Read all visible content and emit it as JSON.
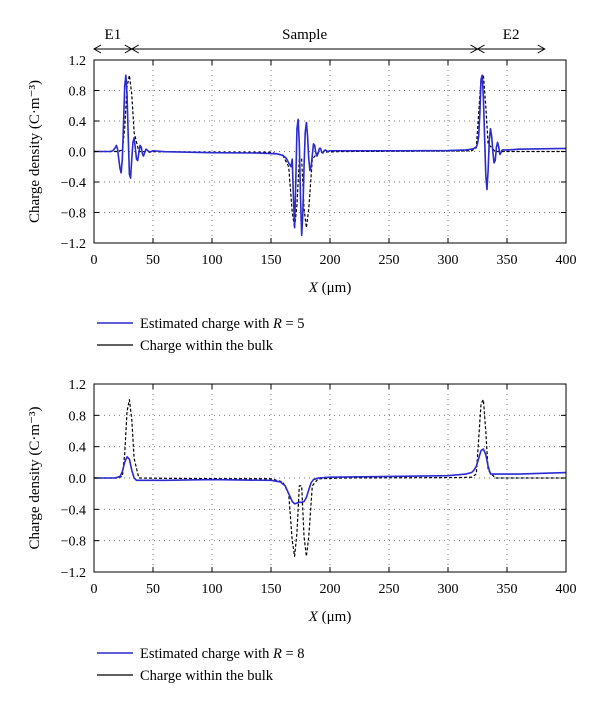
{
  "chart_data": [
    {
      "type": "line",
      "xlabel_var": "X",
      "xlabel_unit": "(μm)",
      "ylabel": "Charge density (C·m⁻³)",
      "xlim": [
        0,
        400
      ],
      "ylim": [
        -1.2,
        1.2
      ],
      "xticks": [
        0,
        50,
        100,
        150,
        200,
        250,
        300,
        350,
        400
      ],
      "yticks": [
        -1.2,
        -0.8,
        -0.4,
        0.0,
        0.4,
        0.8,
        1.2
      ],
      "grid": "dotted",
      "regions": [
        {
          "label": "E1",
          "from": 0,
          "to": 32
        },
        {
          "label": "Sample",
          "from": 32,
          "to": 325
        },
        {
          "label": "E2",
          "from": 325,
          "to": 382
        }
      ],
      "legend": [
        {
          "text": "Estimated charge with ",
          "var": "R",
          "suffix": " = 5",
          "color": "#2a2ad0",
          "dash": "solid"
        },
        {
          "text": "Charge within the bulk",
          "color": "#000000",
          "dash": "solid"
        }
      ],
      "series": [
        {
          "role": "bulk",
          "color": "#000000",
          "dash": "3,2",
          "x": [
            0,
            20,
            24,
            26,
            28,
            30,
            32,
            34,
            38,
            60,
            120,
            150,
            160,
            165,
            168,
            170,
            172,
            174,
            176,
            178,
            180,
            182,
            185,
            190,
            210,
            260,
            310,
            320,
            324,
            326,
            328,
            330,
            332,
            334,
            340,
            400
          ],
          "y": [
            0,
            0,
            0.02,
            0.3,
            0.85,
            1.0,
            0.75,
            0.25,
            0,
            -0.004,
            -0.01,
            -0.01,
            -0.05,
            -0.2,
            -0.8,
            -1.0,
            -0.7,
            -0.1,
            -0.1,
            -0.75,
            -1.0,
            -0.75,
            -0.1,
            -0.01,
            0.0,
            0.003,
            0.006,
            0.01,
            0.05,
            0.5,
            0.95,
            1.0,
            0.6,
            0.1,
            0.0,
            0.0
          ]
        },
        {
          "role": "estimated",
          "color": "#2a2ad0",
          "dash": "",
          "x": [
            0,
            14,
            16,
            18,
            19,
            20,
            21,
            22,
            23,
            24,
            25,
            26,
            27,
            28,
            29,
            30,
            31,
            32,
            33,
            34,
            35,
            36,
            37,
            38,
            39,
            40,
            41,
            42,
            43,
            44,
            45,
            47,
            50,
            60,
            100,
            140,
            155,
            160,
            163,
            165,
            167,
            168,
            169,
            170,
            171,
            172,
            173,
            174,
            175,
            176,
            177,
            178,
            179,
            180,
            181,
            182,
            183,
            184,
            185,
            186,
            187,
            188,
            189,
            190,
            191,
            192,
            193,
            194,
            195,
            196,
            198,
            200,
            210,
            260,
            300,
            315,
            320,
            322,
            324,
            325,
            326,
            327,
            328,
            329,
            330,
            331,
            332,
            333,
            334,
            335,
            336,
            337,
            338,
            339,
            340,
            341,
            342,
            343,
            344,
            346,
            350,
            360,
            400
          ],
          "y": [
            0,
            0,
            0.01,
            0.05,
            0.08,
            0.03,
            -0.1,
            -0.22,
            -0.28,
            -0.1,
            0.35,
            0.85,
            1.0,
            0.75,
            0.2,
            -0.3,
            -0.35,
            -0.1,
            0.12,
            0.18,
            0.05,
            -0.1,
            -0.12,
            -0.02,
            0.08,
            0.06,
            -0.03,
            -0.06,
            -0.01,
            0.03,
            0.02,
            -0.01,
            0.01,
            -0.003,
            -0.015,
            -0.02,
            -0.03,
            -0.05,
            -0.09,
            -0.15,
            -0.2,
            -0.1,
            -0.6,
            -1.0,
            -0.4,
            0.3,
            0.42,
            0.1,
            -0.6,
            -1.1,
            -0.8,
            -0.2,
            0.25,
            0.38,
            0.2,
            -0.1,
            -0.25,
            -0.2,
            -0.05,
            0.1,
            0.08,
            -0.02,
            -0.06,
            -0.02,
            0.04,
            0.04,
            -0.01,
            -0.02,
            0.01,
            0.02,
            0.0,
            0.01,
            0.01,
            0.01,
            0.012,
            0.02,
            0.03,
            0.04,
            0.06,
            0.1,
            0.2,
            0.5,
            0.95,
            1.0,
            0.7,
            0.2,
            -0.3,
            -0.5,
            -0.25,
            0.15,
            0.3,
            0.2,
            0.0,
            -0.15,
            -0.12,
            0.05,
            0.12,
            0.06,
            -0.04,
            0.02,
            0.02,
            0.03,
            0.04
          ]
        }
      ]
    },
    {
      "type": "line",
      "xlabel_var": "X",
      "xlabel_unit": "(μm)",
      "ylabel": "Charge density (C·m⁻³)",
      "xlim": [
        0,
        400
      ],
      "ylim": [
        -1.2,
        1.2
      ],
      "xticks": [
        0,
        50,
        100,
        150,
        200,
        250,
        300,
        350,
        400
      ],
      "yticks": [
        -1.2,
        -0.8,
        -0.4,
        0.0,
        0.4,
        0.8,
        1.2
      ],
      "grid": "dotted",
      "regions": [],
      "legend": [
        {
          "text": "Estimated charge with ",
          "var": "R",
          "suffix": " = 8",
          "color": "#2a2ad0",
          "dash": "solid"
        },
        {
          "text": "Charge within the bulk",
          "color": "#000000",
          "dash": "solid"
        }
      ],
      "series": [
        {
          "role": "bulk",
          "color": "#000000",
          "dash": "3,2",
          "x": [
            0,
            20,
            24,
            26,
            28,
            30,
            32,
            34,
            38,
            60,
            120,
            150,
            160,
            165,
            168,
            170,
            172,
            174,
            176,
            178,
            180,
            182,
            185,
            190,
            210,
            260,
            310,
            320,
            324,
            326,
            328,
            330,
            332,
            334,
            340,
            400
          ],
          "y": [
            0,
            0,
            0.02,
            0.3,
            0.85,
            1.0,
            0.75,
            0.25,
            0,
            -0.004,
            -0.01,
            -0.01,
            -0.05,
            -0.2,
            -0.8,
            -1.0,
            -0.7,
            -0.1,
            -0.1,
            -0.75,
            -1.0,
            -0.75,
            -0.1,
            -0.01,
            0.0,
            0.003,
            0.006,
            0.01,
            0.05,
            0.5,
            0.95,
            1.0,
            0.6,
            0.1,
            0.0,
            0.0
          ]
        },
        {
          "role": "estimated",
          "color": "#2a2ad0",
          "dash": "",
          "x": [
            0,
            18,
            22,
            24,
            26,
            28,
            30,
            32,
            34,
            36,
            40,
            60,
            100,
            150,
            158,
            162,
            165,
            168,
            170,
            172,
            174,
            176,
            178,
            180,
            182,
            184,
            186,
            190,
            200,
            250,
            300,
            315,
            320,
            322,
            324,
            326,
            328,
            330,
            332,
            334,
            336,
            340,
            360,
            400
          ],
          "y": [
            0,
            0,
            0.02,
            0.08,
            0.2,
            0.27,
            0.24,
            0.1,
            0.0,
            -0.03,
            -0.03,
            -0.03,
            -0.02,
            -0.03,
            -0.05,
            -0.1,
            -0.2,
            -0.3,
            -0.33,
            -0.32,
            -0.31,
            -0.31,
            -0.3,
            -0.25,
            -0.15,
            -0.06,
            -0.02,
            0.0,
            0.01,
            0.02,
            0.03,
            0.05,
            0.07,
            0.1,
            0.15,
            0.25,
            0.35,
            0.37,
            0.3,
            0.15,
            0.05,
            0.05,
            0.05,
            0.07
          ]
        }
      ]
    }
  ]
}
